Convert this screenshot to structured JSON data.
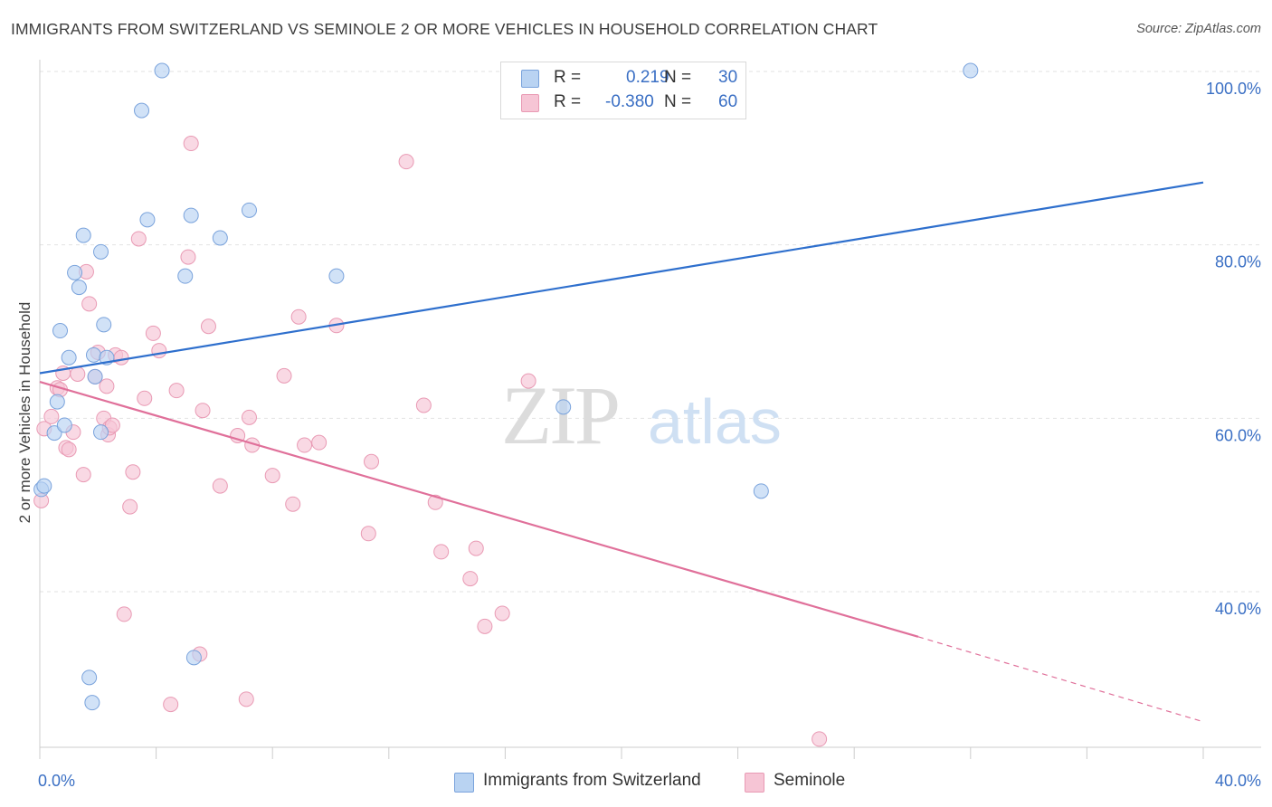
{
  "title": "IMMIGRANTS FROM SWITZERLAND VS SEMINOLE 2 OR MORE VEHICLES IN HOUSEHOLD CORRELATION CHART",
  "source": "Source: ZipAtlas.com",
  "watermark": {
    "zip": "ZIP",
    "atlas": "atlas"
  },
  "legend": {
    "rows": [
      {
        "r_label": "R =",
        "r_value": "0.219",
        "n_label": "N =",
        "n_value": "30"
      },
      {
        "r_label": "R =",
        "r_value": "-0.380",
        "n_label": "N =",
        "n_value": "60"
      }
    ]
  },
  "colors": {
    "blue_fill": "#b9d3f2",
    "blue_stroke": "#7aa3dc",
    "blue_line": "#2e6fcd",
    "pink_fill": "#f6c5d5",
    "pink_stroke": "#e99ab4",
    "pink_line": "#e0709a",
    "tick_label": "#3a6fc4",
    "grid": "#e2e2e2"
  },
  "chart_data": {
    "type": "scatter",
    "title": "IMMIGRANTS FROM SWITZERLAND VS SEMINOLE 2 OR MORE VEHICLES IN HOUSEHOLD CORRELATION CHART",
    "xlabel": "",
    "ylabel": "2 or more Vehicles in Household",
    "xlim": [
      0,
      40
    ],
    "ylim": [
      22,
      102
    ],
    "x_tick_labels": [
      "0.0%",
      "40.0%"
    ],
    "y_ticks": [
      40,
      60,
      80,
      100
    ],
    "y_tick_labels": [
      "40.0%",
      "60.0%",
      "80.0%",
      "100.0%"
    ],
    "grid": true,
    "legend_position": "top-center",
    "series": [
      {
        "name": "Immigrants from Switzerland",
        "color": "#b9d3f2",
        "trend": {
          "x": [
            0,
            40
          ],
          "y": [
            65.2,
            87.2
          ]
        },
        "points": [
          [
            0.05,
            51.8
          ],
          [
            0.15,
            52.2
          ],
          [
            0.5,
            58.3
          ],
          [
            0.6,
            61.9
          ],
          [
            0.7,
            70.1
          ],
          [
            0.85,
            59.2
          ],
          [
            1.0,
            67.0
          ],
          [
            1.2,
            76.8
          ],
          [
            1.35,
            75.1
          ],
          [
            1.5,
            81.1
          ],
          [
            1.7,
            30.1
          ],
          [
            1.8,
            27.2
          ],
          [
            1.85,
            67.3
          ],
          [
            1.9,
            64.8
          ],
          [
            2.1,
            58.4
          ],
          [
            2.2,
            70.8
          ],
          [
            2.1,
            79.2
          ],
          [
            2.3,
            67.0
          ],
          [
            3.5,
            95.5
          ],
          [
            3.7,
            82.9
          ],
          [
            4.2,
            100.1
          ],
          [
            5.0,
            76.4
          ],
          [
            5.2,
            83.4
          ],
          [
            5.3,
            32.4
          ],
          [
            6.2,
            80.8
          ],
          [
            7.2,
            84.0
          ],
          [
            10.2,
            76.4
          ],
          [
            18.0,
            61.3
          ],
          [
            24.8,
            51.6
          ],
          [
            32.0,
            100.1
          ]
        ]
      },
      {
        "name": "Seminole",
        "color": "#f6c5d5",
        "trend": {
          "x": [
            0,
            30.2
          ],
          "y": [
            64.2,
            34.8
          ]
        },
        "trend_dashed": {
          "x": [
            30.2,
            40
          ],
          "y": [
            34.8,
            25.0
          ]
        },
        "points": [
          [
            0.05,
            50.5
          ],
          [
            0.15,
            58.8
          ],
          [
            0.4,
            60.2
          ],
          [
            0.6,
            63.5
          ],
          [
            0.7,
            63.3
          ],
          [
            0.8,
            65.2
          ],
          [
            0.9,
            56.6
          ],
          [
            1.0,
            56.4
          ],
          [
            1.15,
            58.4
          ],
          [
            1.3,
            65.1
          ],
          [
            1.5,
            53.5
          ],
          [
            1.6,
            76.9
          ],
          [
            1.7,
            73.2
          ],
          [
            1.9,
            64.8
          ],
          [
            2.0,
            67.6
          ],
          [
            2.2,
            60.0
          ],
          [
            2.3,
            63.7
          ],
          [
            2.35,
            58.1
          ],
          [
            2.4,
            58.9
          ],
          [
            2.5,
            59.2
          ],
          [
            2.6,
            67.3
          ],
          [
            2.8,
            67.0
          ],
          [
            2.9,
            37.4
          ],
          [
            3.1,
            49.8
          ],
          [
            3.2,
            53.8
          ],
          [
            3.4,
            80.7
          ],
          [
            3.6,
            62.3
          ],
          [
            3.9,
            69.8
          ],
          [
            4.1,
            67.8
          ],
          [
            4.5,
            27.0
          ],
          [
            4.7,
            63.2
          ],
          [
            5.1,
            78.6
          ],
          [
            5.2,
            91.7
          ],
          [
            5.5,
            32.8
          ],
          [
            5.6,
            60.9
          ],
          [
            5.8,
            70.6
          ],
          [
            6.2,
            52.2
          ],
          [
            6.8,
            58.0
          ],
          [
            7.1,
            27.6
          ],
          [
            7.2,
            60.1
          ],
          [
            7.3,
            56.9
          ],
          [
            8.0,
            53.4
          ],
          [
            8.4,
            64.9
          ],
          [
            8.7,
            50.1
          ],
          [
            8.9,
            71.7
          ],
          [
            9.1,
            56.9
          ],
          [
            9.6,
            57.2
          ],
          [
            10.2,
            70.7
          ],
          [
            11.3,
            46.7
          ],
          [
            11.4,
            55.0
          ],
          [
            13.2,
            61.5
          ],
          [
            12.6,
            89.6
          ],
          [
            13.6,
            50.3
          ],
          [
            13.8,
            44.6
          ],
          [
            14.8,
            41.5
          ],
          [
            15.0,
            45.0
          ],
          [
            15.3,
            36.0
          ],
          [
            15.9,
            37.5
          ],
          [
            16.8,
            64.3
          ],
          [
            26.8,
            23.0
          ]
        ]
      }
    ]
  }
}
